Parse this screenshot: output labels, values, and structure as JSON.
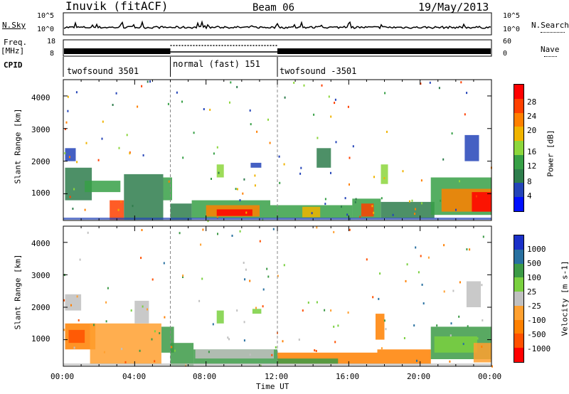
{
  "header": {
    "station": "Inuvik (fitACF)",
    "beam": "Beam 06",
    "date": "19/May/2013"
  },
  "side_labels": {
    "nsky": "N.Sky",
    "freq": "Freq.",
    "freq_unit": "[MHz]",
    "cpid": "CPID",
    "nsearch": "N.Search",
    "nave": "Nave",
    "nsky_hi": "10^5",
    "nsky_lo": "10^0",
    "nsearch_hi": "10^5",
    "nsearch_lo": "10^0",
    "freq_hi": "18",
    "freq_lo": "8",
    "nave_hi": "60",
    "nave_lo": "0"
  },
  "cpid_segments": [
    {
      "label": "twofsound 3501",
      "start_h": 0,
      "end_h": 6
    },
    {
      "label": "normal (fast) 151",
      "start_h": 6,
      "end_h": 12
    },
    {
      "label": "twofsound -3501",
      "start_h": 12,
      "end_h": 24
    }
  ],
  "axes": {
    "xlabel": "Time UT",
    "ylabel": "Slant Range [km]",
    "xticks": [
      "00:00",
      "04:00",
      "08:00",
      "12:00",
      "16:00",
      "20:00",
      "00:00"
    ],
    "yticks": [
      "1000",
      "2000",
      "3000",
      "4000"
    ]
  },
  "colors": {
    "power": [
      "#0010ff",
      "#2444b8",
      "#2e7d4c",
      "#37a046",
      "#8cd63c",
      "#f0b400",
      "#ff8000",
      "#ff4000",
      "#ff0000"
    ],
    "velocity": [
      "#ff0000",
      "#ff5000",
      "#ff8000",
      "#ffa030",
      "#c0c0c0",
      "#7ad040",
      "#3c9a46",
      "#2870a0",
      "#1a30c8"
    ]
  },
  "chart_data": [
    {
      "type": "heatmap",
      "title": "Power",
      "xlabel": "Time UT",
      "ylabel": "Slant Range [km]",
      "colorbar_label": "Power [dB]",
      "colorbar_ticks": [
        "4",
        "8",
        "12",
        "16",
        "20",
        "24",
        "28"
      ],
      "xlim": [
        0,
        24
      ],
      "ylim": [
        180,
        4500
      ],
      "regions": [
        {
          "t0": 0.1,
          "t1": 0.7,
          "r0": 2000,
          "r1": 2400,
          "level": 1
        },
        {
          "t0": 0.1,
          "t1": 1.6,
          "r0": 800,
          "r1": 1800,
          "level": 2
        },
        {
          "t0": 1.2,
          "t1": 3.2,
          "r0": 1050,
          "r1": 1400,
          "level": 3
        },
        {
          "t0": 2.6,
          "t1": 3.4,
          "r0": 200,
          "r1": 800,
          "level": 7
        },
        {
          "t0": 3.4,
          "t1": 5.6,
          "r0": 200,
          "r1": 1600,
          "level": 2
        },
        {
          "t0": 5.6,
          "t1": 6.1,
          "r0": 800,
          "r1": 1500,
          "level": 3
        },
        {
          "t0": 6.0,
          "t1": 7.2,
          "r0": 200,
          "r1": 700,
          "level": 2
        },
        {
          "t0": 7.2,
          "t1": 11.6,
          "r0": 250,
          "r1": 800,
          "level": 3
        },
        {
          "t0": 8.0,
          "t1": 11.0,
          "r0": 300,
          "r1": 650,
          "level": 6
        },
        {
          "t0": 8.6,
          "t1": 10.6,
          "r0": 320,
          "r1": 520,
          "level": 8
        },
        {
          "t0": 8.6,
          "t1": 9.0,
          "r0": 1500,
          "r1": 1900,
          "level": 4
        },
        {
          "t0": 10.5,
          "t1": 11.1,
          "r0": 1800,
          "r1": 1950,
          "level": 1
        },
        {
          "t0": 11.6,
          "t1": 16.2,
          "r0": 250,
          "r1": 650,
          "level": 3
        },
        {
          "t0": 13.4,
          "t1": 14.4,
          "r0": 280,
          "r1": 600,
          "level": 5
        },
        {
          "t0": 14.2,
          "t1": 15.0,
          "r0": 1800,
          "r1": 2400,
          "level": 2
        },
        {
          "t0": 16.2,
          "t1": 17.8,
          "r0": 250,
          "r1": 850,
          "level": 3
        },
        {
          "t0": 16.7,
          "t1": 17.4,
          "r0": 300,
          "r1": 700,
          "level": 7
        },
        {
          "t0": 17.8,
          "t1": 18.2,
          "r0": 1300,
          "r1": 1900,
          "level": 4
        },
        {
          "t0": 17.8,
          "t1": 20.8,
          "r0": 250,
          "r1": 750,
          "level": 2
        },
        {
          "t0": 20.6,
          "t1": 24.0,
          "r0": 350,
          "r1": 1500,
          "level": 3
        },
        {
          "t0": 21.2,
          "t1": 24.0,
          "r0": 450,
          "r1": 1150,
          "level": 6
        },
        {
          "t0": 22.9,
          "t1": 24.0,
          "r0": 450,
          "r1": 1050,
          "level": 8
        },
        {
          "t0": 22.5,
          "t1": 23.3,
          "r0": 2000,
          "r1": 2800,
          "level": 1
        }
      ]
    },
    {
      "type": "heatmap",
      "title": "Velocity",
      "xlabel": "Time UT",
      "ylabel": "Slant Range [km]",
      "colorbar_label": "Velocity [m s-1]",
      "colorbar_ticks": [
        "-1000",
        "-500",
        "-100",
        "-25",
        "25",
        "100",
        "500",
        "1000"
      ],
      "xlim": [
        0,
        24
      ],
      "ylim": [
        180,
        4500
      ],
      "regions": [
        {
          "t0": 0.1,
          "t1": 1.0,
          "r0": 1900,
          "r1": 2400,
          "level": 4
        },
        {
          "t0": 0.1,
          "t1": 1.8,
          "r0": 700,
          "r1": 1500,
          "level": 2
        },
        {
          "t0": 0.3,
          "t1": 1.2,
          "r0": 900,
          "r1": 1300,
          "level": 1
        },
        {
          "t0": 1.5,
          "t1": 5.5,
          "r0": 250,
          "r1": 1500,
          "level": 3
        },
        {
          "t0": 4.0,
          "t1": 4.8,
          "r0": 1500,
          "r1": 2200,
          "level": 4
        },
        {
          "t0": 5.5,
          "t1": 6.2,
          "r0": 600,
          "r1": 1400,
          "level": 6
        },
        {
          "t0": 6.0,
          "t1": 7.3,
          "r0": 200,
          "r1": 900,
          "level": 6
        },
        {
          "t0": 7.3,
          "t1": 12.0,
          "r0": 250,
          "r1": 700,
          "level": 6
        },
        {
          "t0": 7.4,
          "t1": 11.8,
          "r0": 420,
          "r1": 700,
          "level": 4
        },
        {
          "t0": 8.6,
          "t1": 9.0,
          "r0": 1500,
          "r1": 1900,
          "level": 5
        },
        {
          "t0": 10.6,
          "t1": 11.1,
          "r0": 1800,
          "r1": 1950,
          "level": 5
        },
        {
          "t0": 12.0,
          "t1": 17.6,
          "r0": 250,
          "r1": 600,
          "level": 2
        },
        {
          "t0": 12.0,
          "t1": 15.4,
          "r0": 250,
          "r1": 420,
          "level": 6
        },
        {
          "t0": 17.5,
          "t1": 18.0,
          "r0": 1000,
          "r1": 1800,
          "level": 2
        },
        {
          "t0": 17.6,
          "t1": 20.6,
          "r0": 250,
          "r1": 700,
          "level": 2
        },
        {
          "t0": 20.6,
          "t1": 24.0,
          "r0": 400,
          "r1": 1400,
          "level": 6
        },
        {
          "t0": 20.8,
          "t1": 23.2,
          "r0": 600,
          "r1": 1100,
          "level": 5
        },
        {
          "t0": 23.0,
          "t1": 24.0,
          "r0": 300,
          "r1": 900,
          "level": 3
        },
        {
          "t0": 22.6,
          "t1": 23.4,
          "r0": 2000,
          "r1": 2800,
          "level": 4
        }
      ]
    }
  ]
}
